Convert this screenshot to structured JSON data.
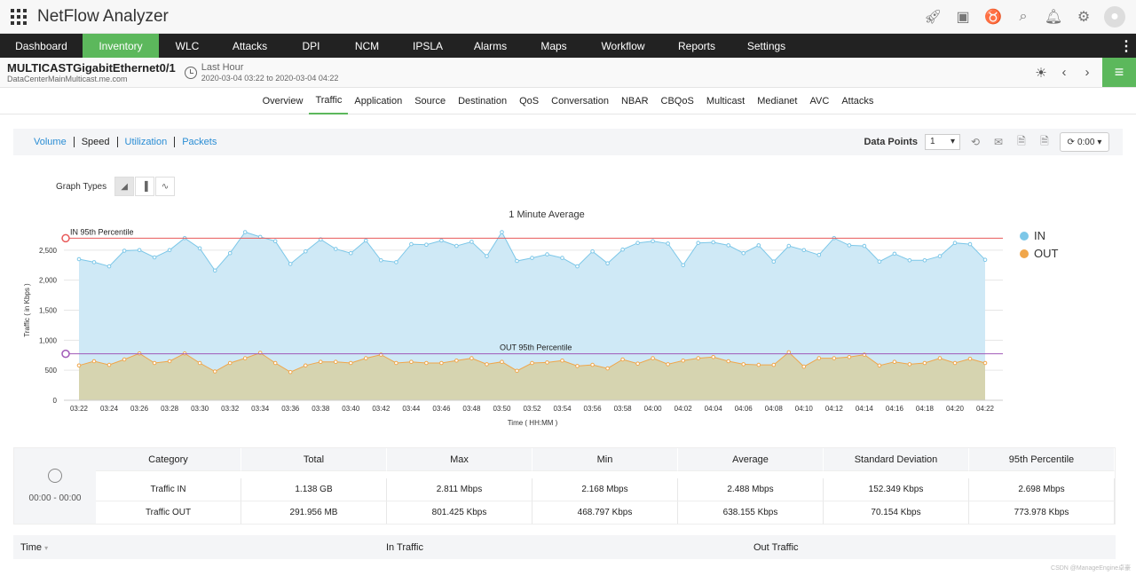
{
  "app": {
    "title": "NetFlow Analyzer"
  },
  "top_icons": [
    "rocket-icon",
    "monitor-icon",
    "headset-icon",
    "search-icon",
    "bell-icon",
    "gear-icon",
    "user-avatar-icon"
  ],
  "nav": [
    {
      "label": "Dashboard",
      "active": false
    },
    {
      "label": "Inventory",
      "active": true
    },
    {
      "label": "WLC",
      "active": false
    },
    {
      "label": "Attacks",
      "active": false
    },
    {
      "label": "DPI",
      "active": false
    },
    {
      "label": "NCM",
      "active": false
    },
    {
      "label": "IPSLA",
      "active": false
    },
    {
      "label": "Alarms",
      "active": false
    },
    {
      "label": "Maps",
      "active": false
    },
    {
      "label": "Workflow",
      "active": false
    },
    {
      "label": "Reports",
      "active": false
    },
    {
      "label": "Settings",
      "active": false
    }
  ],
  "device": {
    "name": "MULTICASTGigabitEthernet0/1",
    "host": "DataCenterMainMulticast.me.com",
    "time_title": "Last Hour",
    "time_range": "2020-03-04 03:22 to 2020-03-04 04:22"
  },
  "subtabs": [
    {
      "label": "Overview",
      "active": false
    },
    {
      "label": "Traffic",
      "active": true
    },
    {
      "label": "Application",
      "active": false
    },
    {
      "label": "Source",
      "active": false
    },
    {
      "label": "Destination",
      "active": false
    },
    {
      "label": "QoS",
      "active": false
    },
    {
      "label": "Conversation",
      "active": false
    },
    {
      "label": "NBAR",
      "active": false
    },
    {
      "label": "CBQoS",
      "active": false
    },
    {
      "label": "Multicast",
      "active": false
    },
    {
      "label": "Medianet",
      "active": false
    },
    {
      "label": "AVC",
      "active": false
    },
    {
      "label": "Attacks",
      "active": false
    }
  ],
  "toolbar": {
    "metrics": [
      {
        "label": "Volume",
        "active": false
      },
      {
        "label": "Speed",
        "active": true
      },
      {
        "label": "Utilization",
        "active": false
      },
      {
        "label": "Packets",
        "active": false
      }
    ],
    "data_points_label": "Data Points",
    "data_points_value": "1",
    "refresh_value": "0:00"
  },
  "graph_types_label": "Graph Types",
  "chart_data": {
    "type": "area",
    "title": "1 Minute Average",
    "xlabel": "Time ( HH:MM )",
    "ylabel": "Traffic ( in Kbps )",
    "ylim": [
      0,
      3000
    ],
    "yticks": [
      0,
      500,
      1000,
      1500,
      2000,
      2500
    ],
    "ytick_labels": [
      "0",
      "500",
      "1,000",
      "1,500",
      "2,000",
      "2,500"
    ],
    "xtick_labels": [
      "03:22",
      "03:24",
      "03:26",
      "03:28",
      "03:30",
      "03:32",
      "03:34",
      "03:36",
      "03:38",
      "03:40",
      "03:42",
      "03:44",
      "03:46",
      "03:48",
      "03:50",
      "03:52",
      "03:54",
      "03:56",
      "03:58",
      "04:00",
      "04:02",
      "04:04",
      "04:06",
      "04:08",
      "04:10",
      "04:12",
      "04:14",
      "04:16",
      "04:18",
      "04:20",
      "04:22"
    ],
    "series": [
      {
        "name": "IN",
        "color": "#7cc7e8",
        "values": [
          2350,
          2300,
          2230,
          2490,
          2500,
          2380,
          2500,
          2700,
          2530,
          2160,
          2450,
          2800,
          2720,
          2650,
          2270,
          2480,
          2680,
          2520,
          2450,
          2660,
          2330,
          2300,
          2600,
          2590,
          2660,
          2570,
          2640,
          2400,
          2800,
          2320,
          2370,
          2430,
          2370,
          2230,
          2480,
          2280,
          2510,
          2620,
          2650,
          2610,
          2250,
          2620,
          2630,
          2580,
          2450,
          2580,
          2310,
          2570,
          2500,
          2420,
          2700,
          2580,
          2570,
          2310,
          2440,
          2330,
          2330,
          2400,
          2620,
          2600,
          2340
        ]
      },
      {
        "name": "OUT",
        "color": "#f0a64a",
        "values": [
          580,
          650,
          590,
          680,
          780,
          620,
          650,
          780,
          620,
          480,
          620,
          700,
          790,
          620,
          470,
          580,
          640,
          640,
          620,
          700,
          760,
          620,
          640,
          620,
          620,
          660,
          700,
          600,
          640,
          490,
          620,
          630,
          660,
          570,
          590,
          530,
          680,
          610,
          700,
          600,
          660,
          700,
          720,
          650,
          600,
          590,
          590,
          800,
          560,
          700,
          700,
          720,
          760,
          580,
          640,
          600,
          620,
          700,
          620,
          690,
          620
        ]
      }
    ],
    "percentiles": [
      {
        "label": "IN 95th Percentile",
        "value": 2698,
        "color": "#e85a5a"
      },
      {
        "label": "OUT 95th Percentile",
        "value": 774,
        "color": "#a15ab8"
      }
    ],
    "legend_position": "right",
    "grid": true
  },
  "stats": {
    "time_range": "00:00 - 00:00",
    "headers": [
      "Category",
      "Total",
      "Max",
      "Min",
      "Average",
      "Standard Deviation",
      "95th Percentile"
    ],
    "rows": [
      [
        "Traffic IN",
        "1.138 GB",
        "2.811 Mbps",
        "2.168 Mbps",
        "2.488 Mbps",
        "152.349 Kbps",
        "2.698 Mbps"
      ],
      [
        "Traffic OUT",
        "291.956 MB",
        "801.425 Kbps",
        "468.797 Kbps",
        "638.155 Kbps",
        "70.154 Kbps",
        "773.978 Kbps"
      ]
    ]
  },
  "data_table_headers": [
    "Time",
    "In Traffic",
    "Out Traffic"
  ],
  "watermark": "CSDN @ManageEngine卓豪"
}
